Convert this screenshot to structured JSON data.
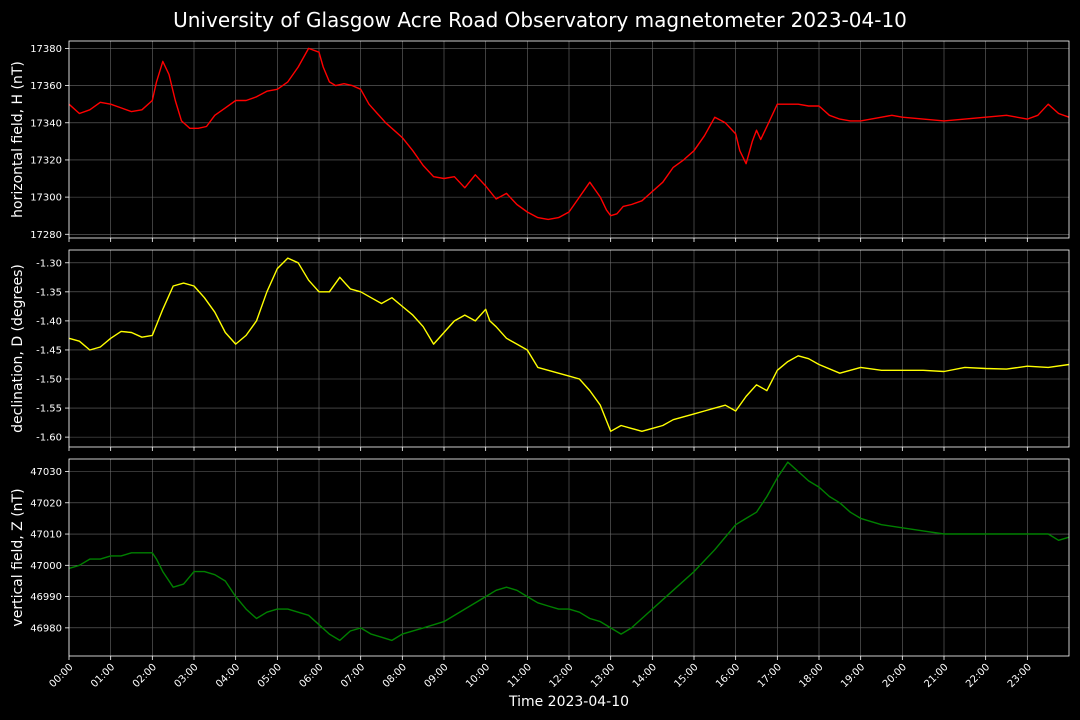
{
  "chart_data": {
    "title": "University of Glasgow Acre Road Observatory magnetometer 2023-04-10",
    "xlabel": "Time 2023-04-10",
    "x_ticks": [
      "00:00",
      "01:00",
      "02:00",
      "03:00",
      "04:00",
      "05:00",
      "06:00",
      "07:00",
      "08:00",
      "09:00",
      "10:00",
      "11:00",
      "12:00",
      "13:00",
      "14:00",
      "15:00",
      "16:00",
      "17:00",
      "18:00",
      "19:00",
      "20:00",
      "21:00",
      "22:00",
      "23:00"
    ],
    "xlim_hours": [
      0,
      24
    ],
    "grid": true,
    "panels": [
      {
        "type": "line",
        "ylabel": "horizontal field, H (nT)",
        "color": "#ff0000",
        "ylim": [
          17278,
          17384
        ],
        "yticks": [
          "17280",
          "17300",
          "17320",
          "17340",
          "17360",
          "17380"
        ],
        "series": {
          "x": [
            0,
            0.25,
            0.5,
            0.75,
            1,
            1.25,
            1.5,
            1.75,
            2,
            2.1,
            2.25,
            2.4,
            2.55,
            2.7,
            2.9,
            3.1,
            3.3,
            3.5,
            3.75,
            4,
            4.25,
            4.5,
            4.75,
            5,
            5.25,
            5.5,
            5.75,
            6,
            6.1,
            6.25,
            6.4,
            6.6,
            6.8,
            7,
            7.2,
            7.4,
            7.6,
            7.8,
            8,
            8.25,
            8.5,
            8.75,
            9,
            9.25,
            9.5,
            9.75,
            10,
            10.25,
            10.5,
            10.75,
            11,
            11.25,
            11.5,
            11.75,
            12,
            12.25,
            12.5,
            12.75,
            12.9,
            13,
            13.15,
            13.3,
            13.5,
            13.75,
            14,
            14.25,
            14.5,
            14.75,
            15,
            15.25,
            15.5,
            15.75,
            16,
            16.1,
            16.25,
            16.4,
            16.5,
            16.6,
            16.75,
            17,
            17.25,
            17.5,
            17.75,
            18,
            18.25,
            18.5,
            18.75,
            19,
            19.25,
            19.5,
            19.75,
            20,
            20.5,
            21,
            21.5,
            22,
            22.5,
            23,
            23.25,
            23.5,
            23.75,
            24
          ],
          "y": [
            17350,
            17345,
            17347,
            17351,
            17350,
            17348,
            17346,
            17347,
            17352,
            17362,
            17373,
            17366,
            17352,
            17341,
            17337,
            17337,
            17338,
            17344,
            17348,
            17352,
            17352,
            17354,
            17357,
            17358,
            17362,
            17370,
            17380,
            17378,
            17370,
            17362,
            17360,
            17361,
            17360,
            17358,
            17350,
            17345,
            17340,
            17336,
            17332,
            17325,
            17317,
            17311,
            17310,
            17311,
            17305,
            17312,
            17306,
            17299,
            17302,
            17296,
            17292,
            17289,
            17288,
            17289,
            17292,
            17300,
            17308,
            17300,
            17293,
            17290,
            17291,
            17295,
            17296,
            17298,
            17303,
            17308,
            17316,
            17320,
            17325,
            17333,
            17343,
            17340,
            17334,
            17325,
            17318,
            17330,
            17336,
            17331,
            17338,
            17350,
            17350,
            17350,
            17349,
            17349,
            17344,
            17342,
            17341,
            17341,
            17342,
            17343,
            17344,
            17343,
            17342,
            17341,
            17342,
            17343,
            17344,
            17342,
            17344,
            17350,
            17345,
            17343
          ]
        }
      },
      {
        "type": "line",
        "ylabel": "declination, D (degrees)",
        "color": "#ffff00",
        "ylim": [
          -1.617,
          -1.278
        ],
        "yticks": [
          "-1.30",
          "-1.35",
          "-1.40",
          "-1.45",
          "-1.50",
          "-1.55",
          "-1.60"
        ],
        "series": {
          "x": [
            0,
            0.25,
            0.5,
            0.75,
            1,
            1.25,
            1.5,
            1.75,
            2,
            2.25,
            2.5,
            2.75,
            3,
            3.25,
            3.5,
            3.75,
            4,
            4.25,
            4.5,
            4.75,
            5,
            5.25,
            5.5,
            5.75,
            6,
            6.25,
            6.5,
            6.75,
            7,
            7.25,
            7.5,
            7.75,
            8,
            8.25,
            8.5,
            8.75,
            9,
            9.25,
            9.5,
            9.75,
            10,
            10.1,
            10.25,
            10.5,
            10.75,
            11,
            11.25,
            11.5,
            11.75,
            12,
            12.25,
            12.5,
            12.75,
            13,
            13.25,
            13.5,
            13.75,
            14,
            14.25,
            14.5,
            14.75,
            15,
            15.25,
            15.5,
            15.75,
            16,
            16.25,
            16.5,
            16.75,
            17,
            17.25,
            17.5,
            17.75,
            18,
            18.5,
            19,
            19.5,
            20,
            20.5,
            21,
            21.5,
            22,
            22.5,
            23,
            23.5,
            24
          ],
          "y": [
            -1.43,
            -1.435,
            -1.45,
            -1.445,
            -1.43,
            -1.418,
            -1.42,
            -1.428,
            -1.425,
            -1.38,
            -1.34,
            -1.335,
            -1.34,
            -1.36,
            -1.385,
            -1.42,
            -1.44,
            -1.425,
            -1.4,
            -1.35,
            -1.31,
            -1.292,
            -1.3,
            -1.33,
            -1.35,
            -1.35,
            -1.325,
            -1.345,
            -1.35,
            -1.36,
            -1.37,
            -1.36,
            -1.375,
            -1.39,
            -1.41,
            -1.44,
            -1.42,
            -1.4,
            -1.39,
            -1.4,
            -1.38,
            -1.4,
            -1.41,
            -1.43,
            -1.44,
            -1.45,
            -1.48,
            -1.485,
            -1.49,
            -1.495,
            -1.5,
            -1.52,
            -1.545,
            -1.59,
            -1.58,
            -1.585,
            -1.59,
            -1.585,
            -1.58,
            -1.57,
            -1.565,
            -1.56,
            -1.555,
            -1.55,
            -1.545,
            -1.555,
            -1.53,
            -1.51,
            -1.52,
            -1.485,
            -1.47,
            -1.46,
            -1.465,
            -1.475,
            -1.49,
            -1.48,
            -1.485,
            -1.485,
            -1.485,
            -1.487,
            -1.48,
            -1.482,
            -1.483,
            -1.478,
            -1.48,
            -1.475
          ]
        }
      },
      {
        "type": "line",
        "ylabel": "vertical field, Z (nT)",
        "color": "#008000",
        "ylim": [
          46971,
          47034
        ],
        "yticks": [
          "46980",
          "46990",
          "47000",
          "47010",
          "47020",
          "47030"
        ],
        "series": {
          "x": [
            0,
            0.25,
            0.5,
            0.75,
            1,
            1.25,
            1.5,
            1.75,
            2,
            2.1,
            2.25,
            2.5,
            2.75,
            3,
            3.25,
            3.5,
            3.75,
            4,
            4.25,
            4.5,
            4.75,
            5,
            5.25,
            5.5,
            5.75,
            6,
            6.25,
            6.5,
            6.75,
            7,
            7.25,
            7.5,
            7.75,
            8,
            8.5,
            9,
            9.5,
            10,
            10.25,
            10.5,
            10.75,
            11,
            11.25,
            11.5,
            11.75,
            12,
            12.25,
            12.5,
            12.75,
            13,
            13.25,
            13.5,
            13.75,
            14,
            14.5,
            15,
            15.5,
            16,
            16.25,
            16.5,
            16.75,
            17,
            17.25,
            17.5,
            17.75,
            18,
            18.25,
            18.5,
            18.75,
            19,
            19.5,
            20,
            20.5,
            21,
            21.5,
            22,
            22.5,
            23,
            23.25,
            23.5,
            23.75,
            24
          ],
          "y": [
            46999,
            47000,
            47002,
            47002,
            47003,
            47003,
            47004,
            47004,
            47004,
            47002,
            46998,
            46993,
            46994,
            46998,
            46998,
            46997,
            46995,
            46990,
            46986,
            46983,
            46985,
            46986,
            46986,
            46985,
            46984,
            46981,
            46978,
            46976,
            46979,
            46980,
            46978,
            46977,
            46976,
            46978,
            46980,
            46982,
            46986,
            46990,
            46992,
            46993,
            46992,
            46990,
            46988,
            46987,
            46986,
            46986,
            46985,
            46983,
            46982,
            46980,
            46978,
            46980,
            46983,
            46986,
            46992,
            46998,
            47005,
            47013,
            47015,
            47017,
            47022,
            47028,
            47033,
            47030,
            47027,
            47025,
            47022,
            47020,
            47017,
            47015,
            47013,
            47012,
            47011,
            47010,
            47010,
            47010,
            47010,
            47010,
            47010,
            47010,
            47008,
            47009
          ]
        }
      }
    ]
  }
}
